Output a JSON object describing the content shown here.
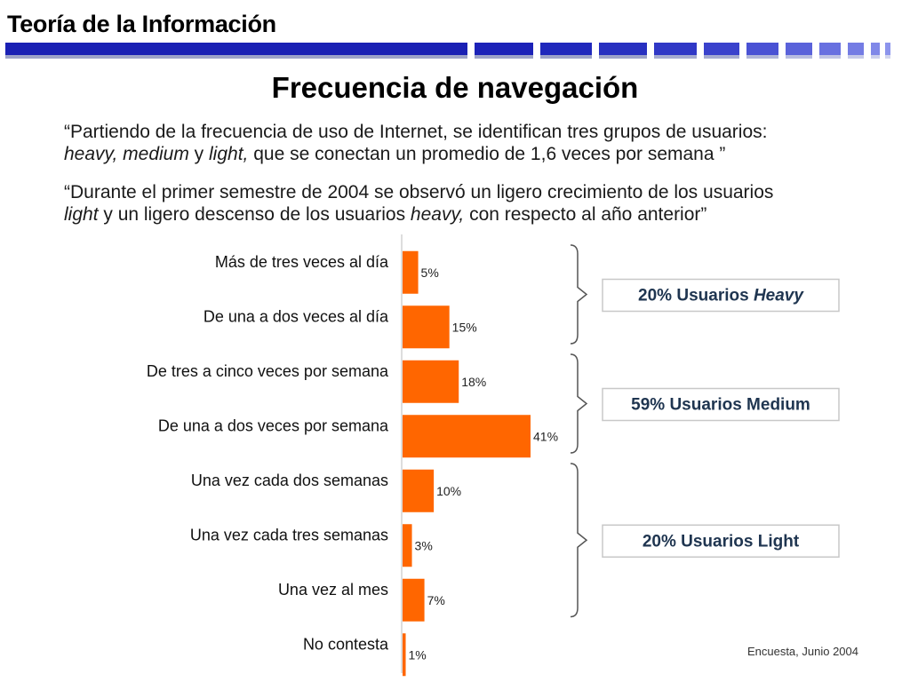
{
  "header": {
    "title": "Teoría de la Información",
    "bar_colors": {
      "dark": "#1a20b4",
      "light": "#6b73e0"
    }
  },
  "slide": {
    "title": "Frecuencia de navegación",
    "quote1": {
      "line1": "“Partiendo de la frecuencia de uso de Internet, se identifican tres grupos de usuarios:",
      "line2_italic_a": "heavy, medium",
      "line2_plain_a": " y ",
      "line2_italic_b": "light,",
      "line2_plain_b": " que se conectan un promedio de 1,6 veces por semana ”"
    },
    "quote2": {
      "line1": "“Durante el primer semestre de 2004 se observó un ligero crecimiento de los usuarios",
      "line2_italic_a": "light",
      "line2_plain_a": " y un ligero descenso de los usuarios ",
      "line2_italic_b": "heavy,",
      "line2_plain_b": " con respecto al año anterior”"
    }
  },
  "chart_data": {
    "type": "bar",
    "orientation": "horizontal",
    "categories": [
      "Más de tres veces al día",
      "De una a dos veces al día",
      "De tres a cinco veces por semana",
      "De una a dos veces por semana",
      "Una vez cada dos semanas",
      "Una vez cada tres semanas",
      "Una vez al mes",
      "No contesta"
    ],
    "values": [
      5,
      15,
      18,
      41,
      10,
      3,
      7,
      1
    ],
    "value_labels": [
      "5%",
      "15%",
      "18%",
      "41%",
      "10%",
      "3%",
      "7%",
      "1%"
    ],
    "bar_color": "#ff6600",
    "xlim": [
      0,
      41
    ],
    "groups": [
      {
        "label_parts": [
          "20% Usuarios ",
          "Heavy"
        ],
        "italic_second": true,
        "categories": [
          0,
          1
        ]
      },
      {
        "label_parts": [
          "59% Usuarios Medium",
          ""
        ],
        "italic_second": false,
        "categories": [
          2,
          3
        ]
      },
      {
        "label_parts": [
          "20% Usuarios Light",
          ""
        ],
        "italic_second": false,
        "categories": [
          4,
          5,
          6
        ]
      }
    ],
    "source": "Encuesta, Junio 2004"
  }
}
